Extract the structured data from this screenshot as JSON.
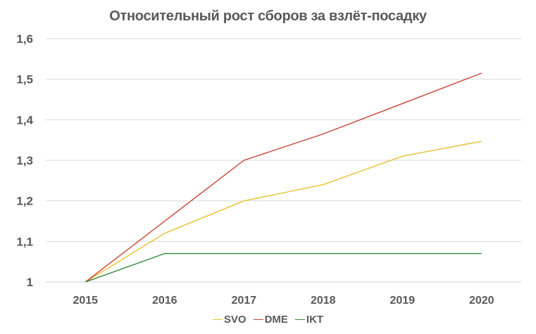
{
  "chart_data": {
    "type": "line",
    "title": "Относительный рост сборов за взлёт-посадку",
    "xlabel": "",
    "ylabel": "",
    "categories": [
      "2015",
      "2016",
      "2017",
      "2018",
      "2019",
      "2020"
    ],
    "ylim": [
      1,
      1.6
    ],
    "yticks": [
      "1",
      "1,1",
      "1,2",
      "1,3",
      "1,4",
      "1,5",
      "1,6"
    ],
    "grid": true,
    "legend_position": "bottom",
    "series": [
      {
        "name": "SVO",
        "color": "#e6c02e",
        "values": [
          1.0,
          1.12,
          1.2,
          1.24,
          1.31,
          1.347
        ]
      },
      {
        "name": "DME",
        "color": "#c94133",
        "values": [
          1.0,
          1.15,
          1.3,
          1.365,
          1.44,
          1.515
        ]
      },
      {
        "name": "IKT",
        "color": "#2e8b3a",
        "values": [
          1.0,
          1.07,
          1.07,
          1.07,
          1.07,
          1.07
        ]
      }
    ]
  }
}
